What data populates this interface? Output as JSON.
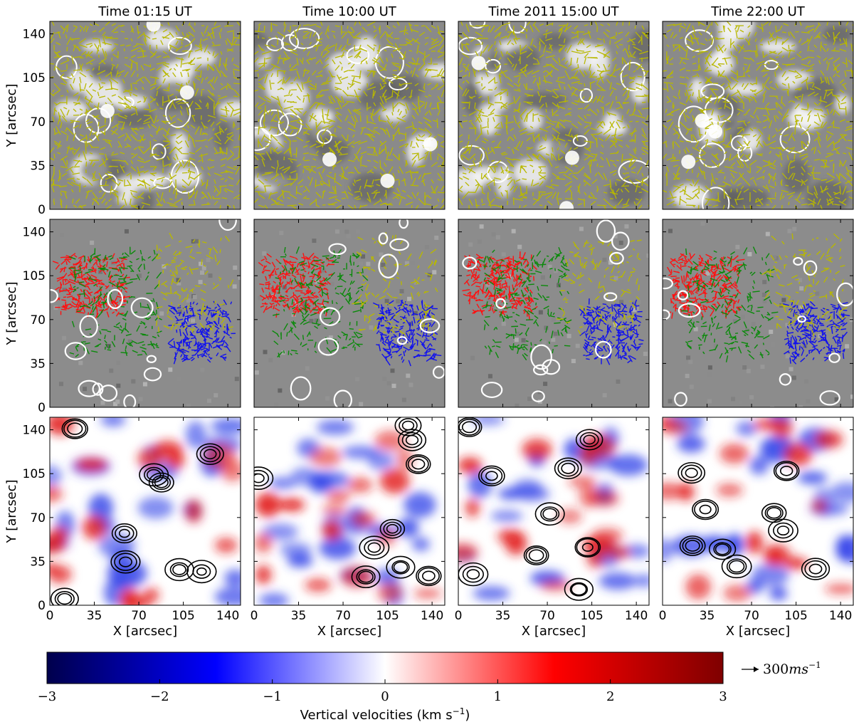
{
  "chart_data": {
    "type": "heatmap",
    "layout": {
      "rows": 3,
      "cols": 4
    },
    "column_titles": [
      "Time 01:15 UT",
      "Time 10:00 UT",
      "Time 2011 15:00 UT",
      "Time 22:00 UT"
    ],
    "row_descriptions": [
      "yellow horizontal flow arrows on grayscale map with white contours",
      "red/green/blue/yellow flow arrows on grayscale magnetogram with white contours",
      "vertical velocity map (blue-white-red) with black contours"
    ],
    "xlabel": "X [arcsec]",
    "ylabel": "Y [arcsec]",
    "xlim": [
      0,
      150
    ],
    "ylim": [
      0,
      150
    ],
    "x_ticks": [
      0,
      35,
      70,
      105,
      140
    ],
    "y_ticks": [
      0,
      35,
      70,
      105,
      140
    ],
    "colorbar": {
      "label": "Vertical velocities (km s$^{-1}$)",
      "label_text": "Vertical velocities (km s",
      "label_sup": "−1",
      "label_end": ")",
      "range": [
        -3,
        3
      ],
      "ticks": [
        -3,
        -2,
        -1,
        0,
        1,
        2,
        3
      ],
      "tick_labels": [
        "−3",
        "−2",
        "−1",
        "0",
        "1",
        "2",
        "3"
      ],
      "colors": [
        "#00004c",
        "#0000ff",
        "#ffffff",
        "#ff0000",
        "#7f0000"
      ]
    },
    "reference_arrow": {
      "value": "300",
      "unit_base": "ms",
      "unit_sup": "−1"
    },
    "colors": {
      "arrow_yellow": "#b8b800",
      "arrow_red": "#ff1010",
      "arrow_green": "#0a8a0a",
      "arrow_blue": "#1010ee",
      "contour_white": "#ffffff",
      "contour_black": "#000000"
    }
  }
}
